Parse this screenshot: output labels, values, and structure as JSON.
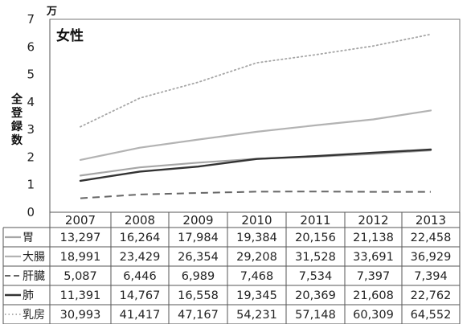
{
  "chart_data": {
    "type": "line",
    "title": "女性",
    "unit": "万",
    "ylabel": "全登録数",
    "ylim": [
      0,
      7
    ],
    "yticks": [
      "0",
      "1",
      "2",
      "3",
      "4",
      "5",
      "6",
      "7"
    ],
    "grid": false,
    "categories": [
      "2007",
      "2008",
      "2009",
      "2010",
      "2011",
      "2012",
      "2013"
    ],
    "series": [
      {
        "name": "胃",
        "values": [
          1.3297,
          1.6264,
          1.7984,
          1.9384,
          2.0156,
          2.1138,
          2.2458
        ],
        "labels": [
          "13,297",
          "16,264",
          "17,984",
          "19,384",
          "20,156",
          "21,138",
          "22,458"
        ],
        "color": "#a6a6a6",
        "style": "solid",
        "width": 2.2
      },
      {
        "name": "大腸",
        "values": [
          1.8991,
          2.3429,
          2.6354,
          2.9208,
          3.1528,
          3.3691,
          3.6929
        ],
        "labels": [
          "18,991",
          "23,429",
          "26,354",
          "29,208",
          "31,528",
          "33,691",
          "36,929"
        ],
        "color": "#b3b3b3",
        "style": "solid",
        "width": 2.2
      },
      {
        "name": "肝臓",
        "values": [
          0.5087,
          0.6446,
          0.6989,
          0.7468,
          0.7534,
          0.7397,
          0.7394
        ],
        "labels": [
          "5,087",
          "6,446",
          "6,989",
          "7,468",
          "7,534",
          "7,397",
          "7,394"
        ],
        "color": "#666666",
        "style": "dashed",
        "width": 2
      },
      {
        "name": "肺",
        "values": [
          1.1391,
          1.4767,
          1.6558,
          1.9345,
          2.0369,
          2.1608,
          2.2762
        ],
        "labels": [
          "11,391",
          "14,767",
          "16,558",
          "19,345",
          "20,369",
          "21,608",
          "22,762"
        ],
        "color": "#333333",
        "style": "solid",
        "width": 2.4
      },
      {
        "name": "乳房",
        "values": [
          3.0993,
          4.1417,
          4.7167,
          5.4231,
          5.7148,
          6.0309,
          6.4552
        ],
        "labels": [
          "30,993",
          "41,417",
          "47,167",
          "54,231",
          "57,148",
          "60,309",
          "64,552"
        ],
        "color": "#a6a6a6",
        "style": "dotted",
        "width": 1.8
      }
    ]
  }
}
